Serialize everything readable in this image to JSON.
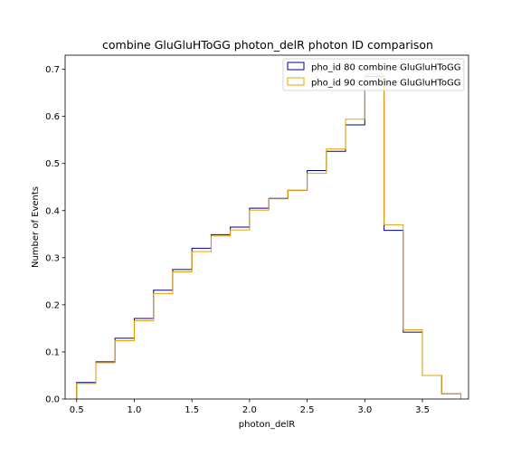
{
  "chart_data": {
    "type": "step",
    "title": "combine GluGluHToGG photon_delR photon ID comparison",
    "xlabel": "photon_delR",
    "ylabel": "Number of Events",
    "xlim": [
      0.4,
      3.9
    ],
    "ylim": [
      0,
      0.73
    ],
    "xticks": [
      0.5,
      1.0,
      1.5,
      2.0,
      2.5,
      3.0,
      3.5
    ],
    "xtick_labels": [
      "0.5",
      "1.0",
      "1.5",
      "2.0",
      "2.5",
      "3.0",
      "3.5"
    ],
    "yticks": [
      0.0,
      0.1,
      0.2,
      0.3,
      0.4,
      0.5,
      0.6,
      0.7
    ],
    "ytick_labels": [
      "0.0",
      "0.1",
      "0.2",
      "0.3",
      "0.4",
      "0.5",
      "0.6",
      "0.7"
    ],
    "grid": false,
    "legend_position": "top-right",
    "bin_edges": [
      0.5,
      0.667,
      0.833,
      1.0,
      1.167,
      1.333,
      1.5,
      1.667,
      1.833,
      2.0,
      2.167,
      2.333,
      2.5,
      2.667,
      2.833,
      3.0,
      3.167,
      3.333,
      3.5,
      3.667,
      3.833
    ],
    "series": [
      {
        "name": "pho_id 80 combine GluGluHToGG",
        "color": "#00008b",
        "values": [
          0.035,
          0.079,
          0.129,
          0.171,
          0.231,
          0.275,
          0.32,
          0.349,
          0.365,
          0.405,
          0.426,
          0.443,
          0.485,
          0.526,
          0.582,
          0.685,
          0.358,
          0.142,
          0.05,
          0.011
        ]
      },
      {
        "name": "pho_id 90 combine GluGluHToGG",
        "color": "#e6a000",
        "values": [
          0.033,
          0.077,
          0.124,
          0.166,
          0.224,
          0.27,
          0.313,
          0.346,
          0.359,
          0.401,
          0.425,
          0.443,
          0.479,
          0.531,
          0.594,
          0.69,
          0.37,
          0.147,
          0.05,
          0.011
        ]
      }
    ]
  }
}
